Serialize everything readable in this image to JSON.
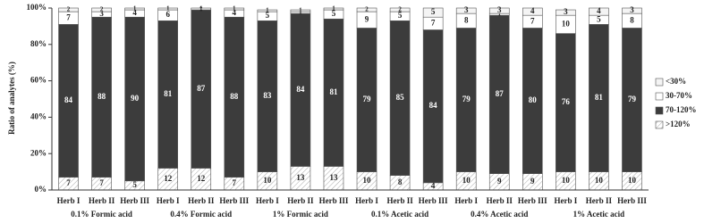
{
  "chart_data": {
    "type": "stacked_bar",
    "y_label": "Ratio of analytes (%)",
    "groups": [
      "0.1% Formic acid",
      "0.4% Formic acid",
      "1% Formic acid",
      "0.1% Acetic acid",
      "0.4% Acetic acid",
      "1% Acetic acid"
    ],
    "categories": [
      "Herb I",
      "Herb II",
      "Herb III",
      "Herb I",
      "Herb II",
      "Herb III",
      "Herb I",
      "Herb II",
      "Herb III",
      "Herb I",
      "Herb II",
      "Herb III",
      "Herb I",
      "Herb II",
      "Herb III",
      "Herb I",
      "Herb II",
      "Herb III"
    ],
    "series": [
      {
        "name": ">120%",
        "color": "hatch",
        "values": [
          7,
          7,
          5,
          12,
          12,
          7,
          10,
          13,
          13,
          10,
          8,
          4,
          10,
          9,
          9,
          10,
          10,
          10
        ]
      },
      {
        "name": "70-120%",
        "color": "#3c3c3c",
        "values": [
          84,
          88,
          90,
          81,
          87,
          88,
          83,
          84,
          81,
          79,
          85,
          84,
          79,
          87,
          80,
          76,
          81,
          79
        ]
      },
      {
        "name": "30-70%",
        "color": "#ffffff",
        "values": [
          7,
          3,
          4,
          6,
          0,
          4,
          5,
          1,
          5,
          9,
          5,
          7,
          8,
          1,
          7,
          10,
          5,
          8
        ]
      },
      {
        "name": "<30%",
        "color": "#f4f4f4",
        "values": [
          2,
          2,
          1,
          1,
          1,
          1,
          1,
          1,
          1,
          2,
          2,
          5,
          3,
          3,
          4,
          3,
          4,
          3
        ]
      }
    ],
    "ylim": [
      0,
      100
    ],
    "yticks": [
      {
        "value": 0,
        "label": "0%"
      },
      {
        "value": 20,
        "label": "20%"
      },
      {
        "value": 40,
        "label": "40%"
      },
      {
        "value": 60,
        "label": "60%"
      },
      {
        "value": 80,
        "label": "80%"
      },
      {
        "value": 100,
        "label": "100%"
      }
    ]
  }
}
